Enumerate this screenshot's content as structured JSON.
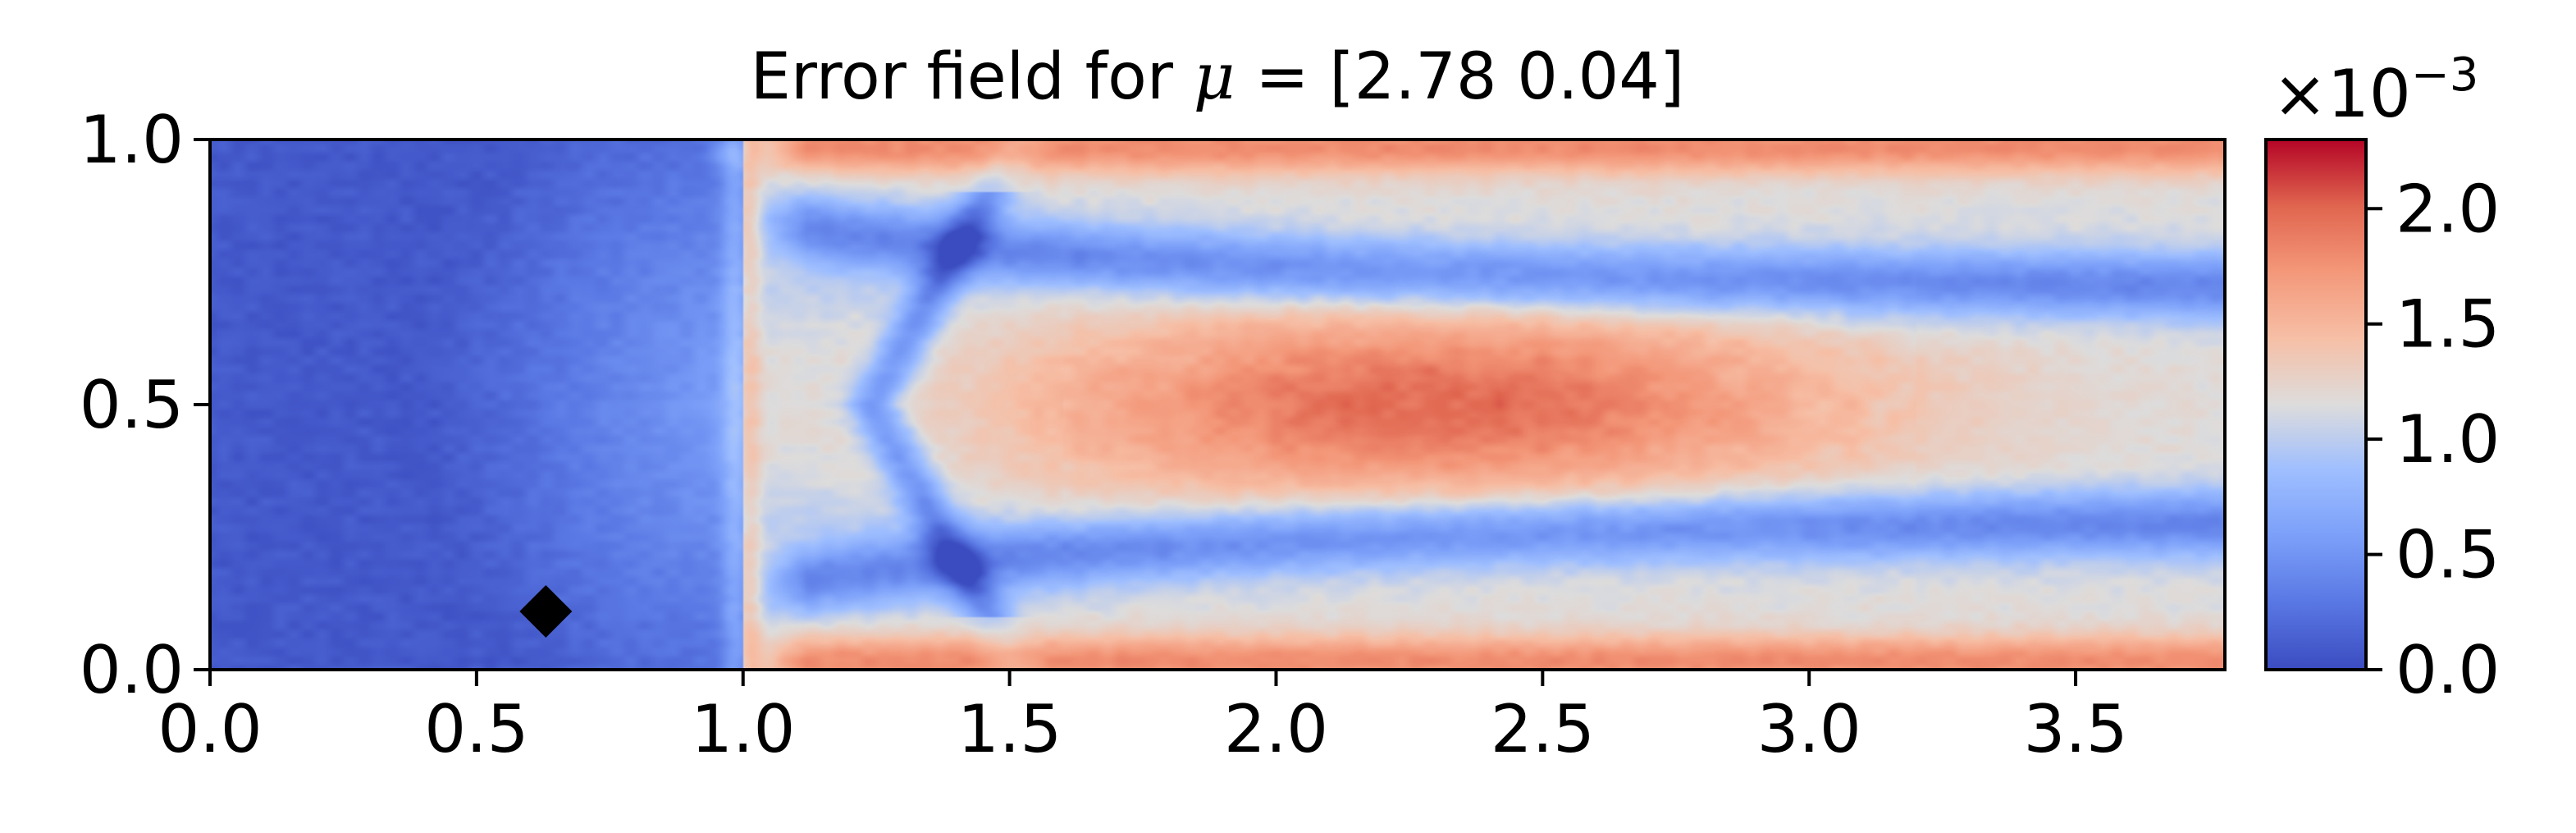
{
  "chart_data": {
    "type": "heatmap",
    "title_prefix": "Error field for ",
    "title_symbol": "μ",
    "title_suffix": " = [2.78 0.04]",
    "xlabel": "",
    "ylabel": "",
    "xlim": [
      0.0,
      3.78
    ],
    "ylim": [
      0.0,
      1.0
    ],
    "x_ticks": [
      "0.0",
      "0.5",
      "1.0",
      "1.5",
      "2.0",
      "2.5",
      "3.0",
      "3.5"
    ],
    "y_ticks": [
      "0.0",
      "0.5",
      "1.0"
    ],
    "grid": false,
    "colormap": "coolwarm",
    "colorbar": {
      "range": [
        0.0,
        2.3
      ],
      "ticks": [
        "0.0",
        "0.5",
        "1.0",
        "1.5",
        "2.0"
      ],
      "scale_base": "×10",
      "scale_exponent": "−3"
    },
    "field_features": [
      {
        "name": "low error inlet region",
        "x_range": [
          0.0,
          0.95
        ],
        "level": 0.05
      },
      {
        "name": "front discontinuity",
        "x": 1.0,
        "level": 1.4
      },
      {
        "name": "central high error core",
        "center": [
          2.2,
          0.5
        ],
        "level": 2.0
      },
      {
        "name": "top wall error band",
        "y": 0.97,
        "level": 1.8
      },
      {
        "name": "bottom wall error band",
        "y": 0.03,
        "level": 1.7
      }
    ],
    "marker": {
      "shape": "diamond",
      "x": 0.63,
      "y": 0.11,
      "color": "#000000"
    }
  }
}
